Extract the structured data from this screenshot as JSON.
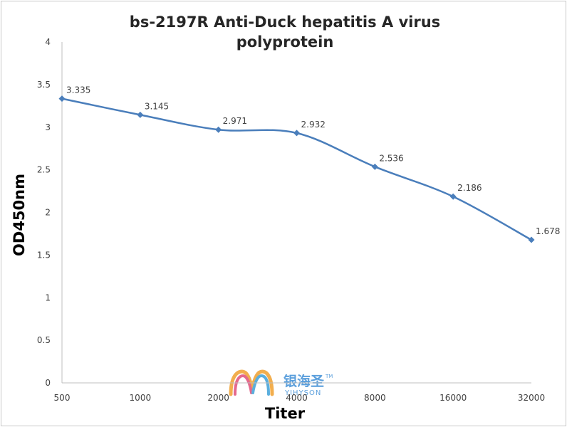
{
  "chart_data": {
    "type": "line",
    "title_lines": [
      "bs-2197R Anti-Duck hepatitis A virus",
      "polyprotein"
    ],
    "xlabel": "Titer",
    "ylabel": "OD450nm",
    "categories": [
      "500",
      "1000",
      "2000",
      "4000",
      "8000",
      "16000",
      "32000"
    ],
    "series": [
      {
        "values": [
          3.335,
          3.145,
          2.971,
          2.932,
          2.536,
          2.186,
          1.678
        ]
      }
    ],
    "data_labels": [
      "3.335",
      "3.145",
      "2.971",
      "2.932",
      "2.536",
      "2.186",
      "1.678"
    ],
    "ylim": [
      0,
      4
    ],
    "yticks": [
      0,
      0.5,
      1,
      1.5,
      2,
      2.5,
      3,
      3.5,
      4
    ],
    "ytick_labels": [
      "0",
      "0.5",
      "1",
      "1.5",
      "2",
      "2.5",
      "3",
      "3.5",
      "4"
    ],
    "grid": false,
    "legend": "none",
    "line_color": "#4a7ebb",
    "marker": "diamond"
  },
  "watermark": {
    "chinese": "银海圣",
    "english": "YIHYSON",
    "trademark": "TM"
  }
}
